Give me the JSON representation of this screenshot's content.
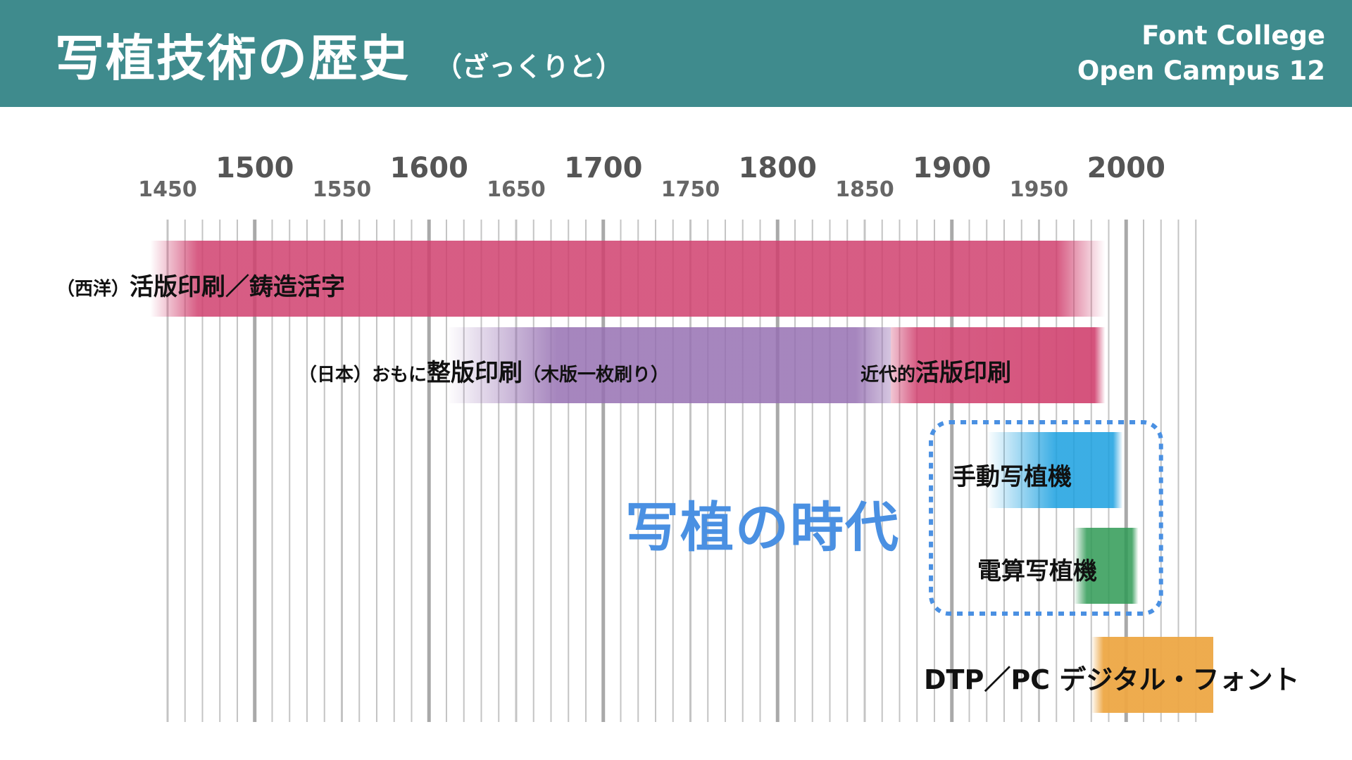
{
  "header": {
    "title": "写植技術の歴史",
    "subtitle": "（ざっくりと）",
    "brand_line1": "Font College",
    "brand_line2": "Open Campus 12"
  },
  "axis": {
    "start": 1450,
    "end": 2040,
    "minor_step": 10,
    "major_ticks": [
      1500,
      1600,
      1700,
      1800,
      1900,
      2000
    ],
    "minor_label_ticks": [
      1450,
      1550,
      1650,
      1750,
      1850,
      1950
    ]
  },
  "colors": {
    "header": "#3f8b8d",
    "gridline": "#c4c4c4",
    "gridline_major": "#a9a9a9",
    "letterpress": "#d0406e",
    "woodblock": "#9670b2",
    "manual_phototype": "#1aa0e0",
    "computer_phototype": "#2f9a55",
    "dtp": "#eda745",
    "era_highlight": "#4a90e2"
  },
  "labels": {
    "west_prefix": "（西洋）",
    "west_main": "活版印刷／鋳造活字",
    "japan_prefix": "（日本）おもに",
    "japan_main": "整版印刷",
    "japan_suffix": "（木版一枚刷り）",
    "modern_prefix": "近代的",
    "modern_main": "活版印刷",
    "manual": "手動写植機",
    "computer": "電算写植機",
    "dtp": "DTP／PC デジタル・フォント",
    "era": "写植の時代"
  },
  "chart_data": {
    "type": "timeline",
    "bars": [
      {
        "label": "（西洋）活版印刷／鋳造活字",
        "start": 1440,
        "end": 1988,
        "color": "#d0406e"
      },
      {
        "label": "（日本）おもに整版印刷（木版一枚刷り）",
        "start": 1610,
        "end": 1865,
        "color": "#9670b2"
      },
      {
        "label": "近代的活版印刷",
        "start": 1865,
        "end": 1988,
        "color": "#d0406e"
      },
      {
        "label": "手動写植機",
        "start": 1920,
        "end": 1998,
        "color": "#1aa0e0"
      },
      {
        "label": "電算写植機",
        "start": 1970,
        "end": 2007,
        "color": "#2f9a55"
      },
      {
        "label": "DTP／PC デジタル・フォント",
        "start": 1980,
        "end": 2050,
        "color": "#eda745"
      }
    ],
    "highlight": {
      "label": "写植の時代",
      "start": 1888,
      "end": 2020
    }
  }
}
